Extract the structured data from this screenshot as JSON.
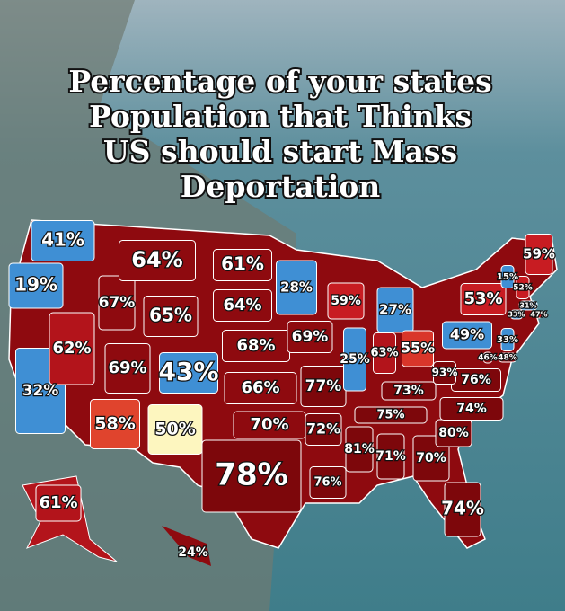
{
  "title": [
    "Percentage of your states",
    "Population that Thinks",
    "US should start Mass",
    "Deportation"
  ],
  "regions": [
    {
      "label": "41%",
      "color": "#3f8fd4"
    },
    {
      "label": "19%",
      "color": "#3f8fd4"
    },
    {
      "label": "32%",
      "color": "#3f8fd4"
    },
    {
      "label": "62%",
      "color": "#b3141b"
    },
    {
      "label": "67%",
      "color": "#8e0a0f"
    },
    {
      "label": "64%",
      "color": "#8e0a0f"
    },
    {
      "label": "65%",
      "color": "#8e0a0f"
    },
    {
      "label": "69%",
      "color": "#8e0a0f"
    },
    {
      "label": "43%",
      "color": "#3f8fd4"
    },
    {
      "label": "58%",
      "color": "#e0442d"
    },
    {
      "label": "50%",
      "color": "#fdf6bf"
    },
    {
      "label": "61%",
      "color": "#8e0a0f"
    },
    {
      "label": "64%",
      "color": "#8e0a0f"
    },
    {
      "label": "68%",
      "color": "#8e0a0f"
    },
    {
      "label": "66%",
      "color": "#8e0a0f"
    },
    {
      "label": "70%",
      "color": "#8e0a0f"
    },
    {
      "label": "78%",
      "color": "#7d070b"
    },
    {
      "label": "28%",
      "color": "#3f8fd4"
    },
    {
      "label": "69%",
      "color": "#8e0a0f"
    },
    {
      "label": "77%",
      "color": "#7d070b"
    },
    {
      "label": "72%",
      "color": "#7d070b"
    },
    {
      "label": "76%",
      "color": "#7d070b"
    },
    {
      "label": "59%",
      "color": "#c81c22"
    },
    {
      "label": "25%",
      "color": "#3f8fd4"
    },
    {
      "label": "27%",
      "color": "#3f8fd4"
    },
    {
      "label": "63%",
      "color": "#b3141b"
    },
    {
      "label": "55%",
      "color": "#d9362a"
    },
    {
      "label": "73%",
      "color": "#7d070b"
    },
    {
      "label": "75%",
      "color": "#7d070b"
    },
    {
      "label": "81%",
      "color": "#7d070b"
    },
    {
      "label": "71%",
      "color": "#7d070b"
    },
    {
      "label": "70%",
      "color": "#7d070b"
    },
    {
      "label": "74%",
      "color": "#7d070b"
    },
    {
      "label": "80%",
      "color": "#7d070b"
    },
    {
      "label": "74%",
      "color": "#7d070b"
    },
    {
      "label": "76%",
      "color": "#7d070b"
    },
    {
      "label": "93%",
      "color": "#7d070b"
    },
    {
      "label": "49%",
      "color": "#3f8fd4"
    },
    {
      "label": "53%",
      "color": "#c81c22"
    },
    {
      "label": "59%",
      "color": "#c81c22"
    },
    {
      "label": "15%",
      "color": "#3f8fd4"
    },
    {
      "label": "52%",
      "color": "#c81c22"
    },
    {
      "label": "31%",
      "color": "#3f8fd4"
    },
    {
      "label": "33%",
      "color": "#3f8fd4"
    },
    {
      "label": "47%",
      "color": "#c81c22"
    },
    {
      "label": "33%",
      "color": "#3f8fd4"
    },
    {
      "label": "46%",
      "color": "#8e0a0f"
    },
    {
      "label": "48%",
      "color": "#8e0a0f"
    },
    {
      "label": "61%",
      "color": "#b3141b"
    },
    {
      "label": "24%",
      "color": "#8e0a0f"
    }
  ]
}
